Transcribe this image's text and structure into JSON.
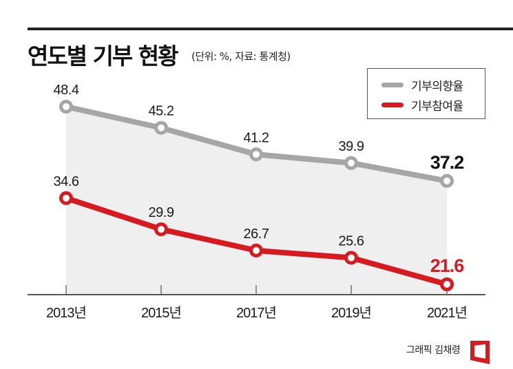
{
  "header": {
    "title": "연도별 기부 현황",
    "subtitle": "(단위: %, 자료: 통계청)"
  },
  "legend": {
    "items": [
      {
        "label": "기부의향율",
        "color": "#a6a6a6"
      },
      {
        "label": "기부참여율",
        "color": "#d71920"
      }
    ]
  },
  "credit": {
    "text": "그래픽 김채령",
    "logo_icon": "publisher-logo-icon",
    "logo_color": "#d71920"
  },
  "chart_data": {
    "type": "line",
    "title": "연도별 기부 현황",
    "subtitle": "(단위: %, 자료: 통계청)",
    "xlabel": "",
    "ylabel": "%",
    "categories": [
      "2013년",
      "2015년",
      "2017년",
      "2019년",
      "2021년"
    ],
    "series": [
      {
        "name": "기부의향율",
        "color": "#a6a6a6",
        "values": [
          48.4,
          45.2,
          41.2,
          39.9,
          37.2
        ],
        "labels": [
          "48.4",
          "45.2",
          "41.2",
          "39.9",
          "37.2"
        ],
        "highlight_last_color": "#111111"
      },
      {
        "name": "기부참여율",
        "color": "#d71920",
        "values": [
          34.6,
          29.9,
          26.7,
          25.6,
          21.6
        ],
        "labels": [
          "34.6",
          "29.9",
          "26.7",
          "25.6",
          "21.6"
        ],
        "highlight_last_color": "#d71920"
      }
    ],
    "legend_position": "top-right",
    "grid": false,
    "area_fill_color": "#efefef",
    "axis_color": "#555555"
  }
}
